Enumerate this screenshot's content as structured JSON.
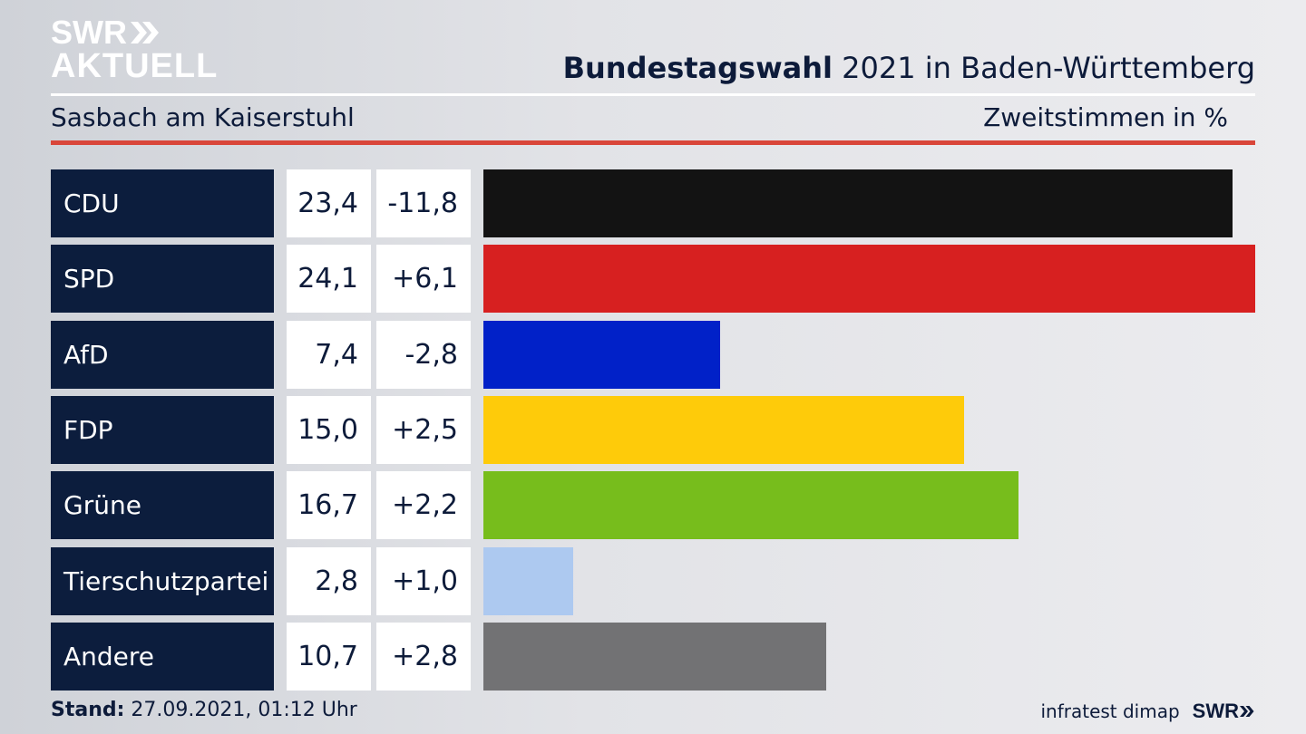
{
  "logo": {
    "line1": "SWR",
    "line2": "AKTUELL"
  },
  "header": {
    "title_bold": "Bundestagswahl",
    "title_rest": " 2021 in Baden-Württemberg",
    "region": "Sasbach am Kaiserstuhl",
    "measure": "Zweitstimmen",
    "unit": "in %"
  },
  "chart_data": {
    "type": "bar",
    "orientation": "horizontal",
    "categories": [
      "CDU",
      "SPD",
      "AfD",
      "FDP",
      "Grüne",
      "Tierschutzpartei",
      "Andere"
    ],
    "values": [
      23.4,
      24.1,
      7.4,
      15.0,
      16.7,
      2.8,
      10.7
    ],
    "values_text": [
      "23,4",
      "24,1",
      "7,4",
      "15,0",
      "16,7",
      "2,8",
      "10,7"
    ],
    "changes_text": [
      "-11,8",
      "+6,1",
      "-2,8",
      "+2,5",
      "+2,2",
      "+1,0",
      "+2,8"
    ],
    "colors": [
      "#131313",
      "#d72020",
      "#0121c8",
      "#fecb0a",
      "#77bd1c",
      "#adc9f0",
      "#727274"
    ],
    "xlim": [
      0,
      24.1
    ],
    "grid": false
  },
  "footer": {
    "stand_label": "Stand:",
    "stand_value": " 27.09.2021, 01:12 Uhr",
    "source": "infratest dimap",
    "brand": "SWR"
  }
}
